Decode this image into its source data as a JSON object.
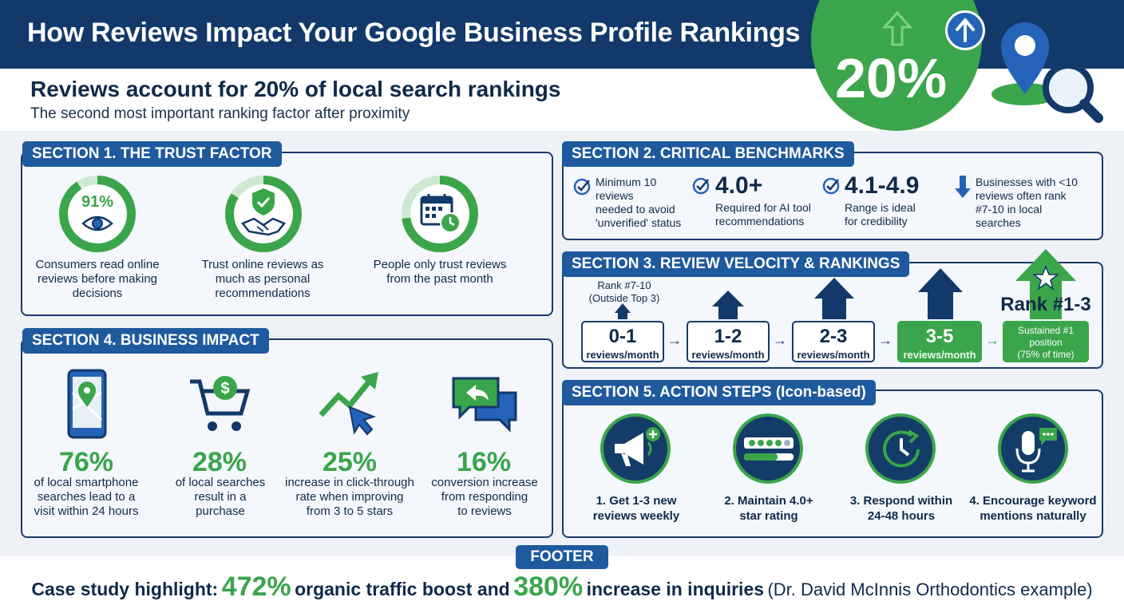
{
  "header": {
    "title": "How Reviews Impact Your Google Business Profile Rankings",
    "headline": "Reviews account for 20% of local search rankings",
    "subheadline": "The second most important ranking factor after proximity",
    "big_stat": "20%"
  },
  "section1": {
    "tag": "SECTION 1. THE TRUST FACTOR",
    "items": [
      {
        "value": "91%",
        "fill": 0.91,
        "icon": "eye-icon",
        "text": [
          "Consumers read online",
          "reviews before making",
          "decisions"
        ]
      },
      {
        "value": "",
        "fill": 0.84,
        "icon": "handshake-shield-icon",
        "text": [
          "Trust online reviews as",
          "much as personal",
          "recommendations"
        ]
      },
      {
        "value": "",
        "fill": 0.73,
        "icon": "calendar-clock-icon",
        "text": [
          "People only trust reviews",
          "from the past month"
        ]
      }
    ]
  },
  "section2": {
    "tag": "SECTION 2. CRITICAL BENCHMARKS",
    "items": [
      {
        "big": "",
        "text": [
          "Minimum 10",
          "reviews",
          "needed to avoid",
          "'unverified' status"
        ]
      },
      {
        "big": "4.0+",
        "text": [
          "Required for AI tool",
          "recommendations"
        ]
      },
      {
        "big": "4.1-4.9",
        "text": [
          "Range is ideal",
          "for credibility"
        ]
      },
      {
        "big": "",
        "text": [
          "Businesses with <10",
          "reviews often rank",
          "#7-10 in local",
          "searches"
        ]
      }
    ]
  },
  "section3": {
    "tag": "SECTION 3. REVIEW VELOCITY & RANKINGS",
    "start_label": [
      "Rank #7-10",
      "(Outside Top 3)"
    ],
    "end_label": "Rank #1-3",
    "steps": [
      {
        "num": "0-1",
        "label": "reviews/month"
      },
      {
        "num": "1-2",
        "label": "reviews/month"
      },
      {
        "num": "2-3",
        "label": "reviews/month"
      },
      {
        "num": "3-5",
        "label": "reviews/month"
      }
    ],
    "final": [
      "Sustained #1",
      "position",
      "(75% of time)"
    ]
  },
  "section4": {
    "tag": "SECTION 4. BUSINESS IMPACT",
    "items": [
      {
        "value": "76%",
        "icon": "smartphone-map-icon",
        "text": [
          "of local smartphone",
          "searches lead to a",
          "visit within 24 hours"
        ]
      },
      {
        "value": "28%",
        "icon": "shopping-cart-dollar-icon",
        "text": [
          "of local searches",
          "result in a",
          "purchase"
        ]
      },
      {
        "value": "25%",
        "icon": "trend-arrow-cursor-icon",
        "text": [
          "increase in click-through",
          "rate when improving",
          "from 3 to 5 stars"
        ]
      },
      {
        "value": "16%",
        "icon": "chat-reply-icon",
        "text": [
          "conversion increase",
          "from responding",
          "to reviews"
        ]
      }
    ]
  },
  "section5": {
    "tag": "SECTION 5. ACTION STEPS (Icon-based)",
    "items": [
      {
        "icon": "megaphone-icon",
        "text": [
          "1. Get 1-3 new",
          "reviews weekly"
        ]
      },
      {
        "icon": "star-rating-icon",
        "text": [
          "2. Maintain 4.0+",
          "star rating"
        ]
      },
      {
        "icon": "clock-refresh-icon",
        "text": [
          "3. Respond within",
          "24-48 hours"
        ]
      },
      {
        "icon": "microphone-chat-icon",
        "text": [
          "4. Encourage keyword",
          "mentions naturally"
        ]
      }
    ]
  },
  "footer": {
    "tag": "FOOTER",
    "lead": "Case study highlight:",
    "stat1": "472%",
    "mid": "organic traffic boost and",
    "stat2": "380%",
    "tail": "increase in inquiries",
    "note": "(Dr. David McInnis Orthodontics example)"
  },
  "colors": {
    "navy": "#13386a",
    "blue": "#1f5a9e",
    "green": "#3aa54a",
    "panel": "#f4f7fb"
  }
}
